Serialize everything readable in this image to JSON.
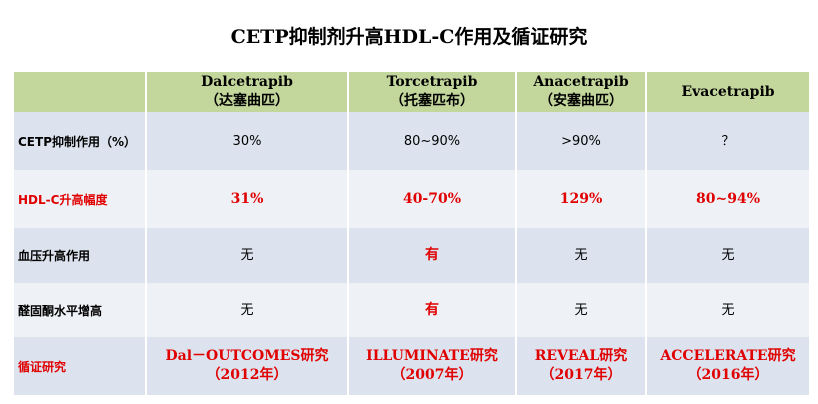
{
  "title": "CETP抑制剂升高HDL-C作用及循证研究",
  "table": {
    "header": [
      [
        "Dalcetrapib",
        "（达塞曲匹）"
      ],
      [
        "Torcetrapib",
        "（托塞匹布）"
      ],
      [
        "Anacetrapib",
        "（安塞曲匹）"
      ],
      [
        "Evacetrapib"
      ]
    ],
    "rows": [
      {
        "label": "CETP抑制作用（%）",
        "cells": [
          [
            "30%"
          ],
          [
            "80~90%"
          ],
          [
            ">90%"
          ],
          [
            "？"
          ]
        ]
      },
      {
        "label": "HDL-C升高幅度",
        "cells": [
          [
            "31%"
          ],
          [
            "40-70%"
          ],
          [
            "129%"
          ],
          [
            "80~94%"
          ]
        ]
      },
      {
        "label": "血压升高作用",
        "cells": [
          [
            "无"
          ],
          [
            "有"
          ],
          [
            "无"
          ],
          [
            "无"
          ]
        ]
      },
      {
        "label": "醛固酮水平增高",
        "cells": [
          [
            "无"
          ],
          [
            "有"
          ],
          [
            "无"
          ],
          [
            "无"
          ]
        ]
      },
      {
        "label": "循证研究",
        "cells": [
          [
            "Dal－OUTCOMES研究",
            "（2012年）"
          ],
          [
            "ILLUMINATE研究",
            "（2007年）"
          ],
          [
            "REVEAL研究",
            "（2017年）"
          ],
          [
            "ACCELERATE研究",
            "（2016年）"
          ]
        ]
      }
    ]
  }
}
